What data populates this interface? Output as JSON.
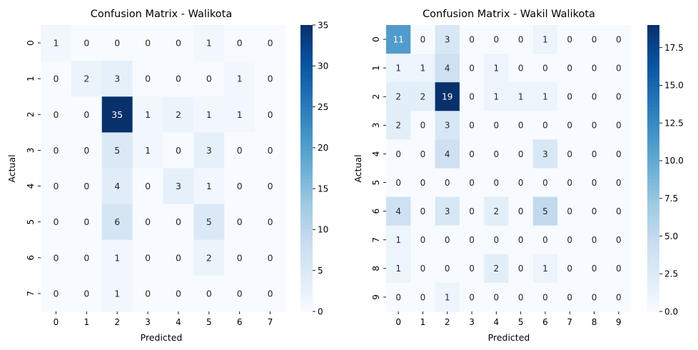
{
  "chart_data": [
    {
      "type": "heatmap",
      "title": "Confusion Matrix - Walikota",
      "xlabel": "Predicted",
      "ylabel": "Actual",
      "x_categories": [
        "0",
        "1",
        "2",
        "3",
        "4",
        "5",
        "6",
        "7"
      ],
      "y_categories": [
        "0",
        "1",
        "2",
        "3",
        "4",
        "5",
        "6",
        "7"
      ],
      "values": [
        [
          1,
          0,
          0,
          0,
          0,
          1,
          0,
          0
        ],
        [
          0,
          2,
          3,
          0,
          0,
          0,
          1,
          0
        ],
        [
          0,
          0,
          35,
          1,
          2,
          1,
          1,
          0
        ],
        [
          0,
          0,
          5,
          1,
          0,
          3,
          0,
          0
        ],
        [
          0,
          0,
          4,
          0,
          3,
          1,
          0,
          0
        ],
        [
          0,
          0,
          6,
          0,
          0,
          5,
          0,
          0
        ],
        [
          0,
          0,
          1,
          0,
          0,
          2,
          0,
          0
        ],
        [
          0,
          0,
          1,
          0,
          0,
          0,
          0,
          0
        ]
      ],
      "colormap": "Blues",
      "color_low": "#f7fbff",
      "color_high": "#08306b",
      "vmin": 0,
      "vmax": 35,
      "colorbar_ticks": [
        "0",
        "5",
        "10",
        "15",
        "20",
        "25",
        "30",
        "35"
      ],
      "colorbar_tick_values": [
        0,
        5,
        10,
        15,
        20,
        25,
        30,
        35
      ]
    },
    {
      "type": "heatmap",
      "title": "Confusion Matrix - Wakil Walikota",
      "xlabel": "Predicted",
      "ylabel": "Actual",
      "x_categories": [
        "0",
        "1",
        "2",
        "3",
        "4",
        "5",
        "6",
        "7",
        "8",
        "9"
      ],
      "y_categories": [
        "0",
        "1",
        "2",
        "3",
        "4",
        "5",
        "6",
        "7",
        "8",
        "9"
      ],
      "values": [
        [
          11,
          0,
          3,
          0,
          0,
          0,
          1,
          0,
          0,
          0
        ],
        [
          1,
          1,
          4,
          0,
          1,
          0,
          0,
          0,
          0,
          0
        ],
        [
          2,
          2,
          19,
          0,
          1,
          1,
          1,
          0,
          0,
          0
        ],
        [
          2,
          0,
          3,
          0,
          0,
          0,
          0,
          0,
          0,
          0
        ],
        [
          0,
          0,
          4,
          0,
          0,
          0,
          3,
          0,
          0,
          0
        ],
        [
          0,
          0,
          0,
          0,
          0,
          0,
          0,
          0,
          0,
          0
        ],
        [
          4,
          0,
          3,
          0,
          2,
          0,
          5,
          0,
          0,
          0
        ],
        [
          1,
          0,
          0,
          0,
          0,
          0,
          0,
          0,
          0,
          0
        ],
        [
          1,
          0,
          0,
          0,
          2,
          0,
          1,
          0,
          0,
          0
        ],
        [
          0,
          0,
          1,
          0,
          0,
          0,
          0,
          0,
          0,
          0
        ]
      ],
      "colormap": "Blues",
      "color_low": "#f7fbff",
      "color_high": "#08306b",
      "vmin": 0,
      "vmax": 19,
      "colorbar_ticks": [
        "0.0",
        "2.5",
        "5.0",
        "7.5",
        "10.0",
        "12.5",
        "15.0",
        "17.5"
      ],
      "colorbar_tick_values": [
        0,
        2.5,
        5,
        7.5,
        10,
        12.5,
        15,
        17.5
      ]
    }
  ]
}
